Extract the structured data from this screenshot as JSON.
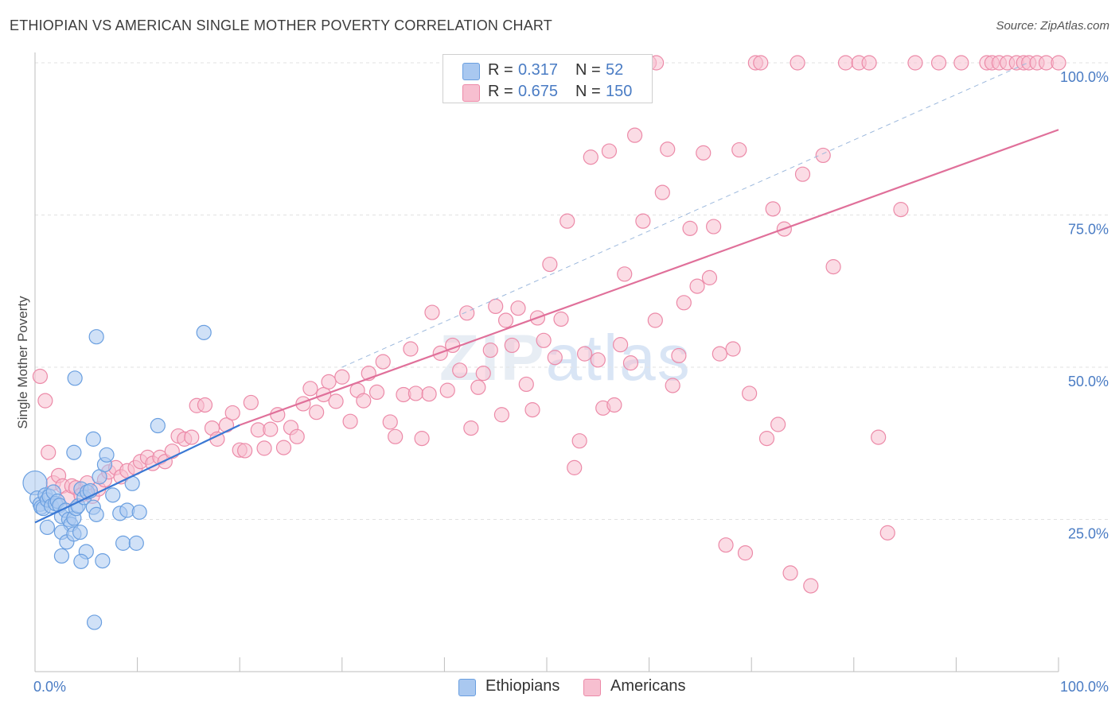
{
  "title": "ETHIOPIAN VS AMERICAN SINGLE MOTHER POVERTY CORRELATION CHART",
  "source": "Source: ZipAtlas.com",
  "watermark": {
    "part1": "ZIP",
    "part2": "atlas"
  },
  "legend": {
    "rows": [
      {
        "r_label": "R =",
        "r_value": "0.317",
        "n_label": "N =",
        "n_value": "52",
        "color": "#a9c8f0",
        "border": "#6a9fe0"
      },
      {
        "r_label": "R =",
        "r_value": "0.675",
        "n_label": "N =",
        "n_value": "150",
        "color": "#f7bfd0",
        "border": "#ec8aa8"
      }
    ]
  },
  "bottom_legend": [
    {
      "label": "Ethiopians",
      "color": "#a9c8f0",
      "border": "#6a9fe0"
    },
    {
      "label": "Americans",
      "color": "#f7bfd0",
      "border": "#ec8aa8"
    }
  ],
  "chart_data": {
    "type": "scatter",
    "title": "ETHIOPIAN VS AMERICAN SINGLE MOTHER POVERTY CORRELATION CHART",
    "xlabel": "",
    "ylabel": "Single Mother Poverty",
    "xlim": [
      0,
      100
    ],
    "ylim": [
      0,
      105
    ],
    "x_tick_labels": [
      "0.0%",
      "100.0%"
    ],
    "y_ticks": [
      25,
      50,
      75,
      100
    ],
    "y_tick_labels": [
      "25.0%",
      "50.0%",
      "75.0%",
      "100.0%"
    ],
    "grid": "horizontal dashed",
    "legend_position": "top-center",
    "series": [
      {
        "name": "Ethiopians",
        "color": "#6a9fe0",
        "fill": "#a9c8f0",
        "trend": {
          "x": [
            0,
            20
          ],
          "y": [
            24.5,
            40.5
          ]
        },
        "points": [
          [
            0.0,
            31
          ],
          [
            0.2,
            28.5
          ],
          [
            0.5,
            27.5
          ],
          [
            0.6,
            27
          ],
          [
            0.8,
            26.8
          ],
          [
            1.0,
            29
          ],
          [
            1.2,
            28.2
          ],
          [
            1.4,
            28.8
          ],
          [
            1.6,
            27.2
          ],
          [
            1.8,
            29.5
          ],
          [
            2.0,
            27.6
          ],
          [
            2.2,
            28
          ],
          [
            2.4,
            27.3
          ],
          [
            2.6,
            25.5
          ],
          [
            3.0,
            26.5
          ],
          [
            3.3,
            25
          ],
          [
            3.5,
            24.2
          ],
          [
            3.8,
            25.2
          ],
          [
            4.0,
            26.8
          ],
          [
            4.2,
            27.2
          ],
          [
            4.5,
            30
          ],
          [
            4.8,
            28.6
          ],
          [
            5.1,
            29.5
          ],
          [
            5.4,
            29.7
          ],
          [
            5.7,
            27
          ],
          [
            6.0,
            25.8
          ],
          [
            6.3,
            32
          ],
          [
            6.8,
            34
          ],
          [
            7.0,
            35.6
          ],
          [
            7.6,
            29
          ],
          [
            8.3,
            26
          ],
          [
            9.0,
            26.5
          ],
          [
            9.5,
            30.9
          ],
          [
            10.2,
            26.2
          ],
          [
            12.0,
            40.4
          ],
          [
            16.5,
            55.7
          ],
          [
            6.0,
            55
          ],
          [
            3.9,
            48.2
          ],
          [
            5.7,
            38.2
          ],
          [
            3.8,
            36
          ],
          [
            1.2,
            23.7
          ],
          [
            2.6,
            22.9
          ],
          [
            3.1,
            21.3
          ],
          [
            3.8,
            22.6
          ],
          [
            4.4,
            22.9
          ],
          [
            5.0,
            19.7
          ],
          [
            6.6,
            18.2
          ],
          [
            8.6,
            21.1
          ],
          [
            9.9,
            21.1
          ],
          [
            2.6,
            19
          ],
          [
            4.5,
            18.1
          ],
          [
            5.8,
            8.1
          ]
        ]
      },
      {
        "name": "Americans",
        "color": "#ec8aa8",
        "fill": "#f7bfd0",
        "trend": {
          "x": [
            20,
            100
          ],
          "y": [
            40.5,
            89
          ]
        },
        "dashed_ref": {
          "x": [
            30,
            97
          ],
          "y": [
            50,
            100
          ]
        },
        "points": [
          [
            0.5,
            48.5
          ],
          [
            1.0,
            44.5
          ],
          [
            1.3,
            36
          ],
          [
            1.8,
            31
          ],
          [
            2.3,
            32.2
          ],
          [
            2.7,
            30.5
          ],
          [
            3.2,
            28.6
          ],
          [
            3.6,
            30.5
          ],
          [
            4.0,
            30.2
          ],
          [
            4.5,
            29
          ],
          [
            5.1,
            31
          ],
          [
            5.6,
            28.8
          ],
          [
            6.2,
            30
          ],
          [
            6.8,
            31.5
          ],
          [
            7.2,
            32.8
          ],
          [
            7.9,
            33.5
          ],
          [
            8.4,
            32
          ],
          [
            9.0,
            33
          ],
          [
            9.8,
            33.5
          ],
          [
            10.3,
            34.5
          ],
          [
            11.0,
            35.2
          ],
          [
            11.5,
            34.2
          ],
          [
            12.2,
            35.2
          ],
          [
            12.7,
            34.5
          ],
          [
            13.4,
            36.2
          ],
          [
            14.0,
            38.7
          ],
          [
            14.6,
            38.2
          ],
          [
            15.3,
            38.5
          ],
          [
            15.8,
            43.7
          ],
          [
            16.6,
            43.8
          ],
          [
            17.3,
            40
          ],
          [
            17.8,
            38.2
          ],
          [
            18.7,
            40.5
          ],
          [
            19.3,
            42.5
          ],
          [
            20.0,
            36.4
          ],
          [
            20.5,
            36.3
          ],
          [
            21.1,
            44.2
          ],
          [
            21.8,
            39.7
          ],
          [
            22.4,
            36.7
          ],
          [
            23.0,
            39.8
          ],
          [
            23.7,
            42.2
          ],
          [
            24.3,
            36.8
          ],
          [
            25.0,
            40.1
          ],
          [
            25.6,
            38.6
          ],
          [
            26.2,
            44
          ],
          [
            26.9,
            46.5
          ],
          [
            27.5,
            42.6
          ],
          [
            28.2,
            45.5
          ],
          [
            28.7,
            47.6
          ],
          [
            29.4,
            44.4
          ],
          [
            30.0,
            48.4
          ],
          [
            30.8,
            41.1
          ],
          [
            31.5,
            46.2
          ],
          [
            32.1,
            44.5
          ],
          [
            32.6,
            49
          ],
          [
            33.4,
            45.9
          ],
          [
            34.0,
            50.9
          ],
          [
            34.7,
            41
          ],
          [
            35.2,
            38.6
          ],
          [
            36.0,
            45.5
          ],
          [
            36.7,
            53
          ],
          [
            37.2,
            45.7
          ],
          [
            37.8,
            38.3
          ],
          [
            38.5,
            45.6
          ],
          [
            38.8,
            59
          ],
          [
            39.6,
            52.3
          ],
          [
            40.3,
            46.2
          ],
          [
            40.8,
            53.6
          ],
          [
            41.5,
            49.5
          ],
          [
            42.2,
            58.9
          ],
          [
            42.6,
            40
          ],
          [
            43.3,
            46.7
          ],
          [
            43.8,
            49
          ],
          [
            44.5,
            52.8
          ],
          [
            45.0,
            60
          ],
          [
            45.6,
            42.2
          ],
          [
            46.0,
            57.7
          ],
          [
            46.6,
            53.6
          ],
          [
            47.2,
            59.7
          ],
          [
            48.0,
            47.2
          ],
          [
            48.6,
            43
          ],
          [
            49.1,
            58.1
          ],
          [
            49.7,
            54.4
          ],
          [
            50.3,
            66.9
          ],
          [
            50.8,
            51.6
          ],
          [
            51.4,
            57.9
          ],
          [
            52.0,
            74
          ],
          [
            52.7,
            33.5
          ],
          [
            53.2,
            37.9
          ],
          [
            53.7,
            52.2
          ],
          [
            54.3,
            84.5
          ],
          [
            55.0,
            51.2
          ],
          [
            55.5,
            43.3
          ],
          [
            56.1,
            85.5
          ],
          [
            56.6,
            43.8
          ],
          [
            57.2,
            53.7
          ],
          [
            57.6,
            65.3
          ],
          [
            58.2,
            50.7
          ],
          [
            58.6,
            88.1
          ],
          [
            59.4,
            74
          ],
          [
            60.0,
            100
          ],
          [
            60.6,
            57.7
          ],
          [
            60.7,
            100
          ],
          [
            61.3,
            78.7
          ],
          [
            61.8,
            85.8
          ],
          [
            62.3,
            47
          ],
          [
            62.9,
            51.9
          ],
          [
            63.4,
            60.6
          ],
          [
            64.0,
            72.8
          ],
          [
            64.7,
            63.3
          ],
          [
            65.3,
            85.2
          ],
          [
            65.9,
            64.7
          ],
          [
            66.3,
            73.1
          ],
          [
            66.9,
            52.2
          ],
          [
            67.5,
            20.8
          ],
          [
            68.2,
            53
          ],
          [
            68.8,
            85.7
          ],
          [
            69.4,
            19.5
          ],
          [
            69.8,
            45.7
          ],
          [
            70.4,
            100
          ],
          [
            70.9,
            100
          ],
          [
            71.5,
            38.3
          ],
          [
            72.1,
            76
          ],
          [
            72.6,
            40.6
          ],
          [
            73.2,
            72.7
          ],
          [
            73.8,
            16.2
          ],
          [
            74.5,
            100
          ],
          [
            75.0,
            81.7
          ],
          [
            75.8,
            14.1
          ],
          [
            77.0,
            84.8
          ],
          [
            78.0,
            66.5
          ],
          [
            79.2,
            100
          ],
          [
            80.5,
            100
          ],
          [
            81.5,
            100
          ],
          [
            82.4,
            38.5
          ],
          [
            83.3,
            22.8
          ],
          [
            84.6,
            75.9
          ],
          [
            86.0,
            100
          ],
          [
            88.3,
            100
          ],
          [
            90.5,
            100
          ],
          [
            93.0,
            100
          ],
          [
            93.5,
            100
          ],
          [
            94.2,
            100
          ],
          [
            95.0,
            100
          ],
          [
            95.9,
            100
          ],
          [
            96.6,
            100
          ],
          [
            97.1,
            100
          ],
          [
            97.9,
            100
          ],
          [
            98.8,
            100
          ],
          [
            100.0,
            100
          ]
        ]
      }
    ]
  }
}
